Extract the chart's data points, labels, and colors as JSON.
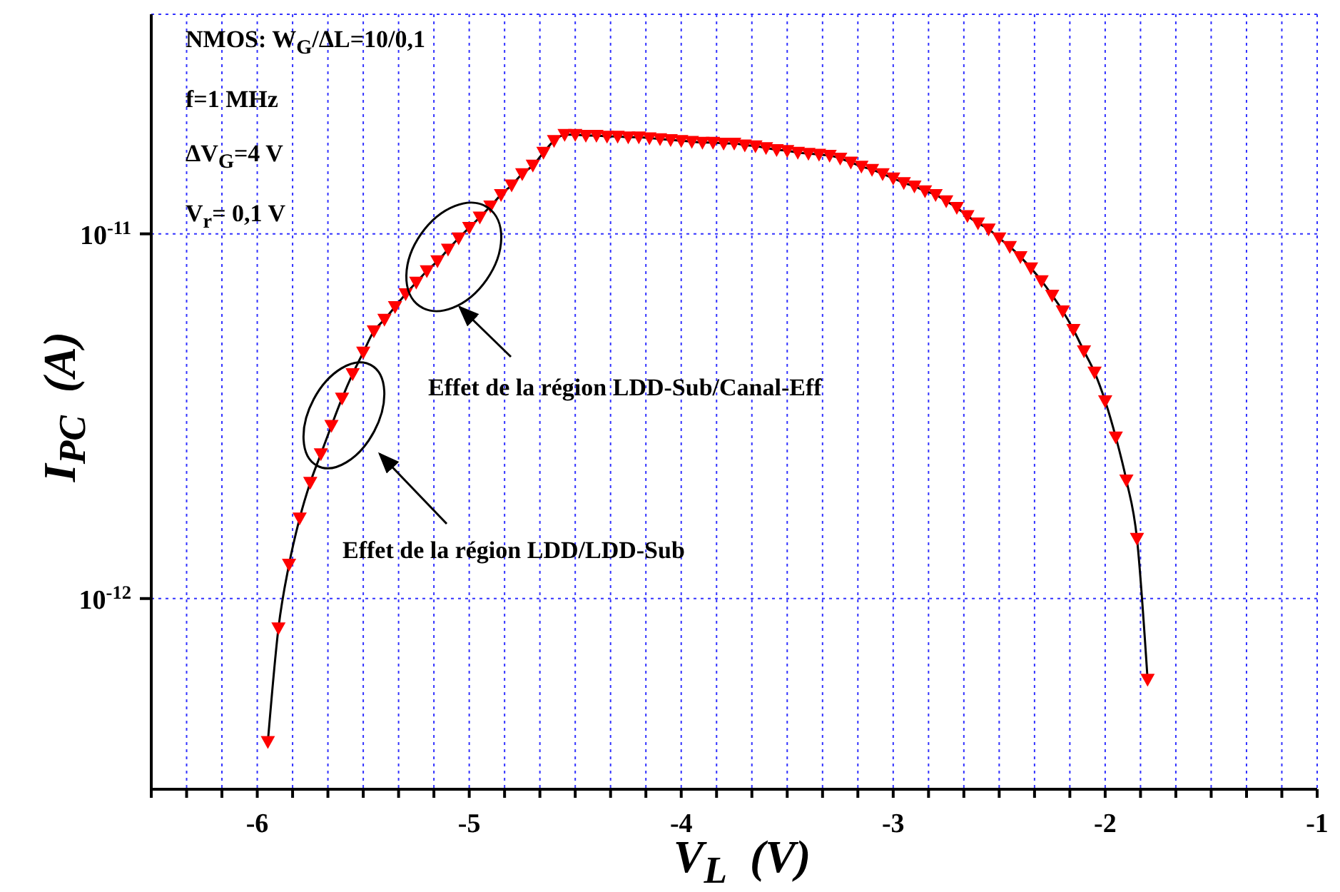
{
  "chart_data": {
    "type": "line",
    "xlabel": "V$_{L}$  (V)",
    "ylabel": "I$_{PC}$  (A)",
    "annotations": [
      "NMOS: W$_{G}$/ΔL=10/0,1",
      "f=1 MHz",
      "ΔV$_{G}$=4 V",
      "V$_{r}$= 0,1 V",
      "Effet de la région LDD-Sub/Canal-Eff",
      "Effet de la région LDD/LDD-Sub"
    ],
    "x": [
      -5.95,
      -5.9,
      -5.85,
      -5.8,
      -5.75,
      -5.7,
      -5.65,
      -5.6,
      -5.55,
      -5.5,
      -5.45,
      -5.4,
      -5.35,
      -5.3,
      -5.25,
      -5.2,
      -5.15,
      -5.1,
      -5.05,
      -5.0,
      -4.95,
      -4.9,
      -4.85,
      -4.8,
      -4.75,
      -4.7,
      -4.65,
      -4.6,
      -4.55,
      -4.5,
      -4.45,
      -4.4,
      -4.35,
      -4.3,
      -4.25,
      -4.2,
      -4.15,
      -4.1,
      -4.05,
      -4.0,
      -3.95,
      -3.9,
      -3.85,
      -3.8,
      -3.75,
      -3.7,
      -3.65,
      -3.6,
      -3.55,
      -3.5,
      -3.45,
      -3.4,
      -3.35,
      -3.3,
      -3.25,
      -3.2,
      -3.15,
      -3.1,
      -3.05,
      -3.0,
      -2.95,
      -2.9,
      -2.85,
      -2.8,
      -2.75,
      -2.7,
      -2.65,
      -2.6,
      -2.55,
      -2.5,
      -2.45,
      -2.4,
      -2.35,
      -2.3,
      -2.25,
      -2.2,
      -2.15,
      -2.1,
      -2.05,
      -2.0,
      -1.95,
      -1.9,
      -1.85,
      -1.8
    ],
    "series": [
      {
        "color": "#ff0000",
        "values": [
          4.05e-13,
          8.3e-13,
          1.24e-12,
          1.66e-12,
          2.08e-12,
          2.49e-12,
          2.98e-12,
          3.54e-12,
          4.13e-12,
          4.73e-12,
          5.41e-12,
          5.82e-12,
          6.31e-12,
          6.84e-12,
          7.36e-12,
          7.91e-12,
          8.42e-12,
          9.06e-12,
          9.73e-12,
          1.04e-11,
          1.11e-11,
          1.19e-11,
          1.28e-11,
          1.36e-11,
          1.46e-11,
          1.54e-11,
          1.67e-11,
          1.8e-11,
          1.87e-11,
          1.87e-11,
          1.86e-11,
          1.86e-11,
          1.85e-11,
          1.85e-11,
          1.84e-11,
          1.84e-11,
          1.83e-11,
          1.82e-11,
          1.81e-11,
          1.8e-11,
          1.79e-11,
          1.78e-11,
          1.78e-11,
          1.77e-11,
          1.77e-11,
          1.75e-11,
          1.74e-11,
          1.72e-11,
          1.7e-11,
          1.69e-11,
          1.67e-11,
          1.66e-11,
          1.65e-11,
          1.64e-11,
          1.61e-11,
          1.57e-11,
          1.53e-11,
          1.5e-11,
          1.46e-11,
          1.42e-11,
          1.38e-11,
          1.35e-11,
          1.31e-11,
          1.28e-11,
          1.23e-11,
          1.18e-11,
          1.12e-11,
          1.07e-11,
          1.03e-11,
          9.73e-12,
          9.22e-12,
          8.65e-12,
          8.05e-12,
          7.43e-12,
          6.78e-12,
          6.14e-12,
          5.46e-12,
          4.77e-12,
          4.17e-12,
          3.48e-12,
          2.77e-12,
          2.11e-12,
          1.46e-12,
          6e-13
        ]
      }
    ],
    "xlim": [
      -6.5,
      -1
    ],
    "xticks": [
      {
        "value": -6.5,
        "label": null
      },
      {
        "value": -6.3333,
        "label": null
      },
      {
        "value": -6.1667,
        "label": null
      },
      -6,
      {
        "value": -5.8333,
        "label": null
      },
      {
        "value": -5.6667,
        "label": null
      },
      {
        "value": -5.5,
        "label": null
      },
      {
        "value": -5.3333,
        "label": null
      },
      {
        "value": -5.1667,
        "label": null
      },
      -5,
      {
        "value": -4.8333,
        "label": null
      },
      {
        "value": -4.6667,
        "label": null
      },
      {
        "value": -4.5,
        "label": null
      },
      {
        "value": -4.3333,
        "label": null
      },
      {
        "value": -4.1667,
        "label": null
      },
      -4,
      {
        "value": -3.8333,
        "label": null
      },
      {
        "value": -3.6667,
        "label": null
      },
      {
        "value": -3.5,
        "label": null
      },
      {
        "value": -3.3333,
        "label": null
      },
      {
        "value": -3.1667,
        "label": null
      },
      -3,
      {
        "value": -2.8333,
        "label": null
      },
      {
        "value": -2.6667,
        "label": null
      },
      {
        "value": -2.5,
        "label": null
      },
      {
        "value": -2.3333,
        "label": null
      },
      {
        "value": -2.1667,
        "label": null
      },
      -2,
      {
        "value": -1.8333,
        "label": null
      },
      {
        "value": -1.6667,
        "label": null
      },
      {
        "value": -1.5,
        "label": null
      },
      {
        "value": -1.3333,
        "label": null
      },
      {
        "value": -1.1667,
        "label": null
      },
      -1
    ],
    "ylim": [
      3e-13,
      4e-11
    ],
    "yticks": [
      {
        "value": 1e-12,
        "label": "10$^{-12}$"
      },
      {
        "value": 1e-11,
        "label": "10$^{-11}$"
      }
    ],
    "log": "y",
    "grid": true,
    "marker": "triangle",
    "line_style": "solid"
  }
}
